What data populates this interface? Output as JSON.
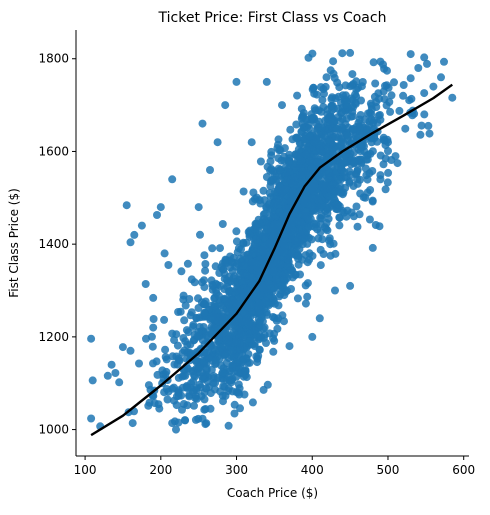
{
  "chart_data": {
    "type": "scatter",
    "title": "Ticket Price: First Class vs Coach",
    "xlabel": "Coach Price ($)",
    "ylabel": "Fist Class Price ($)",
    "xlim": [
      88,
      607
    ],
    "ylim": [
      943,
      1862
    ],
    "xticks": [
      100,
      200,
      300,
      400,
      500,
      600
    ],
    "yticks": [
      1000,
      1200,
      1400,
      1600,
      1800
    ],
    "grid": false,
    "colors": {
      "points": "#1f77b4",
      "fit_line": "#000000"
    },
    "series": [
      {
        "kind": "scatter",
        "points": [
          [
            108,
            1196
          ],
          [
            110,
            1106
          ],
          [
            108,
            1024
          ],
          [
            120,
            1007
          ],
          [
            130,
            1116
          ],
          [
            140,
            1122
          ],
          [
            145,
            1102
          ],
          [
            150,
            1178
          ],
          [
            155,
            1484
          ],
          [
            160,
            1404
          ],
          [
            165,
            1420
          ],
          [
            175,
            1440
          ],
          [
            180,
            1314
          ],
          [
            185,
            1058
          ],
          [
            190,
            1284
          ],
          [
            195,
            1463
          ],
          [
            200,
            1480
          ],
          [
            205,
            1380
          ],
          [
            210,
            1355
          ],
          [
            215,
            1540
          ],
          [
            220,
            1000
          ],
          [
            240,
            1100
          ],
          [
            255,
            1660
          ],
          [
            265,
            1560
          ],
          [
            275,
            1620
          ],
          [
            285,
            1700
          ],
          [
            300,
            1750
          ],
          [
            320,
            1620
          ],
          [
            340,
            1750
          ],
          [
            360,
            1700
          ],
          [
            380,
            1630
          ],
          [
            395,
            1802
          ],
          [
            400,
            1200
          ],
          [
            410,
            1240
          ],
          [
            420,
            1680
          ],
          [
            430,
            1300
          ],
          [
            440,
            1670
          ],
          [
            450,
            1310
          ],
          [
            460,
            1530
          ],
          [
            470,
            1500
          ],
          [
            480,
            1392
          ],
          [
            490,
            1540
          ],
          [
            500,
            1620
          ],
          [
            510,
            1590
          ],
          [
            520,
            1720
          ],
          [
            530,
            1810
          ],
          [
            540,
            1780
          ],
          [
            548,
            1680
          ],
          [
            560,
            1740
          ],
          [
            570,
            1760
          ],
          [
            585,
            1716
          ],
          [
            135,
            1140
          ],
          [
            160,
            1170
          ],
          [
            190,
            1220
          ],
          [
            250,
            1480
          ],
          [
            280,
            1350
          ],
          [
            330,
            1220
          ],
          [
            370,
            1180
          ],
          [
            420,
            1430
          ],
          [
            455,
            1460
          ]
        ]
      },
      {
        "kind": "fit_line",
        "points": [
          [
            108,
            988
          ],
          [
            150,
            1030
          ],
          [
            200,
            1095
          ],
          [
            250,
            1165
          ],
          [
            300,
            1250
          ],
          [
            330,
            1320
          ],
          [
            350,
            1390
          ],
          [
            370,
            1465
          ],
          [
            390,
            1525
          ],
          [
            410,
            1565
          ],
          [
            440,
            1600
          ],
          [
            480,
            1640
          ],
          [
            520,
            1677
          ],
          [
            560,
            1715
          ],
          [
            585,
            1744
          ]
        ]
      }
    ]
  }
}
